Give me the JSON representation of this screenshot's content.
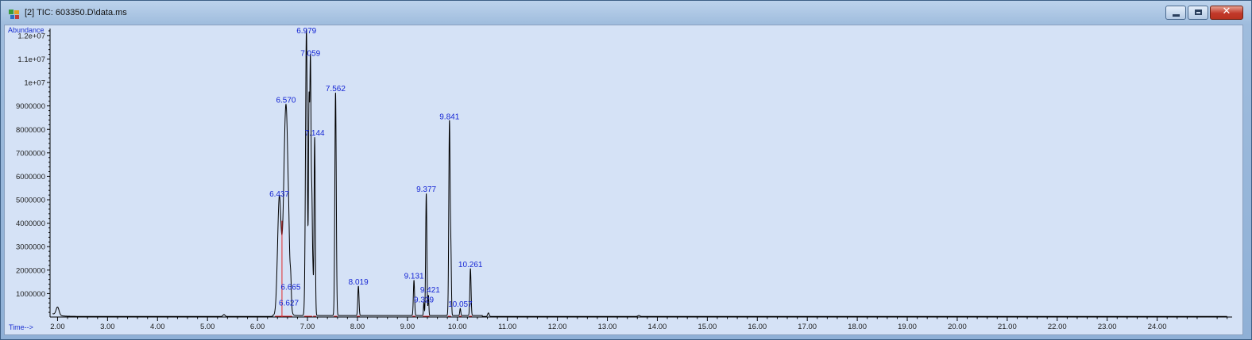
{
  "window": {
    "title": "[2] TIC: 603350.D\\data.ms",
    "controls": [
      "minimize",
      "maximize",
      "close"
    ],
    "close_glyph": "✕"
  },
  "chart_data": {
    "type": "line",
    "ylabel": "Abundance",
    "xlabel": "Time-->",
    "xlim": [
      1.85,
      25.5
    ],
    "ylim": [
      0,
      12300000
    ],
    "x_ticks": [
      {
        "value": 2,
        "label": "2.00"
      },
      {
        "value": 3,
        "label": "3.00"
      },
      {
        "value": 4,
        "label": "4.00"
      },
      {
        "value": 5,
        "label": "5.00"
      },
      {
        "value": 6,
        "label": "6.00"
      },
      {
        "value": 7,
        "label": "7.00"
      },
      {
        "value": 8,
        "label": "8.00"
      },
      {
        "value": 9,
        "label": "9.00"
      },
      {
        "value": 10,
        "label": "10.00"
      },
      {
        "value": 11,
        "label": "11.00"
      },
      {
        "value": 12,
        "label": "12.00"
      },
      {
        "value": 13,
        "label": "13.00"
      },
      {
        "value": 14,
        "label": "14.00"
      },
      {
        "value": 15,
        "label": "15.00"
      },
      {
        "value": 16,
        "label": "16.00"
      },
      {
        "value": 17,
        "label": "17.00"
      },
      {
        "value": 18,
        "label": "18.00"
      },
      {
        "value": 19,
        "label": "19.00"
      },
      {
        "value": 20,
        "label": "20.00"
      },
      {
        "value": 21,
        "label": "21.00"
      },
      {
        "value": 22,
        "label": "22.00"
      },
      {
        "value": 23,
        "label": "23.00"
      },
      {
        "value": 24,
        "label": "24.00"
      }
    ],
    "y_ticks": [
      {
        "value": 1000000,
        "label": "1000000"
      },
      {
        "value": 2000000,
        "label": "2000000"
      },
      {
        "value": 3000000,
        "label": "3000000"
      },
      {
        "value": 4000000,
        "label": "4000000"
      },
      {
        "value": 5000000,
        "label": "5000000"
      },
      {
        "value": 6000000,
        "label": "6000000"
      },
      {
        "value": 7000000,
        "label": "7000000"
      },
      {
        "value": 8000000,
        "label": "8000000"
      },
      {
        "value": 9000000,
        "label": "9000000"
      },
      {
        "value": 10000000,
        "label": "1e+07"
      },
      {
        "value": 11000000,
        "label": "1.1e+07"
      },
      {
        "value": 12000000,
        "label": "1.2e+07"
      }
    ],
    "peaks": [
      {
        "rt": 6.437,
        "label": "6.437",
        "height": 5000000
      },
      {
        "rt": 6.57,
        "label": "6.570",
        "height": 9000000
      },
      {
        "rt": 6.627,
        "label": "6.627",
        "height": 550000
      },
      {
        "rt": 6.665,
        "label": "6.665",
        "height": 900000
      },
      {
        "rt": 6.979,
        "label": "6.979",
        "height": 12200000
      },
      {
        "rt": 7.059,
        "label": "7.059",
        "height": 11000000
      },
      {
        "rt": 7.144,
        "label": "7.144",
        "height": 7600000
      },
      {
        "rt": 7.562,
        "label": "7.562",
        "height": 9500000
      },
      {
        "rt": 8.019,
        "label": "8.019",
        "height": 1250000
      },
      {
        "rt": 9.131,
        "label": "9.131",
        "height": 1500000
      },
      {
        "rt": 9.329,
        "label": "9.329",
        "height": 550000
      },
      {
        "rt": 9.377,
        "label": "9.377",
        "height": 5200000
      },
      {
        "rt": 9.421,
        "label": "9.421",
        "height": 850000
      },
      {
        "rt": 9.841,
        "label": "9.841",
        "height": 8300000
      },
      {
        "rt": 10.057,
        "label": "10.057",
        "height": 300000
      },
      {
        "rt": 10.261,
        "label": "10.261",
        "height": 2000000
      }
    ],
    "line_color": "#000000",
    "integration_color": "#e0282a",
    "label_color": "#1626d4"
  }
}
